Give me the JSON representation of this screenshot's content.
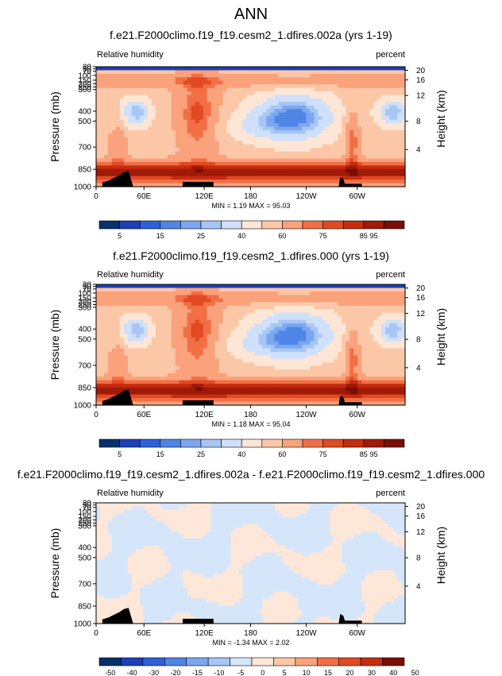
{
  "figure": {
    "title": "ANN"
  },
  "palette": {
    "abs": [
      "#08306b",
      "#1e3fb8",
      "#2f60d8",
      "#4f86e6",
      "#7aa7ef",
      "#a7c6f5",
      "#cfe0fa",
      "#fde6d6",
      "#fcc7a6",
      "#f9a27c",
      "#f26e45",
      "#e14a23",
      "#c52c10",
      "#a01a08",
      "#7a0e04"
    ],
    "diff": [
      "#08306b",
      "#1e3fb8",
      "#2f60d8",
      "#4f86e6",
      "#7aa7ef",
      "#a7c6f5",
      "#d6e6fa",
      "#fde7d8",
      "#fcc7a6",
      "#f9a27c",
      "#f26e45",
      "#e14a23",
      "#c52c10",
      "#7a0e04"
    ],
    "topography": "#000000"
  },
  "chart_data": [
    {
      "type": "heatmap",
      "title": "f.e21.F2000climo.f19_f19.cesm2_1.dfires.002a (yrs 1-19)",
      "variable": "Relative humidity",
      "units": "percent",
      "ylabel": "Pressure (mb)",
      "ylabel_right": "Height (km)",
      "xticks": [
        "0",
        "60E",
        "120E",
        "180",
        "120W",
        "60W"
      ],
      "yticks": [
        "30",
        "50",
        "70",
        "100",
        "150",
        "200",
        "250",
        "300",
        "400",
        "500",
        "700",
        "850",
        "1000"
      ],
      "yticks_right": [
        "20",
        "16",
        "12",
        "8",
        "4"
      ],
      "stats": "MIN =   1.19  MAX =  95.03",
      "colorbar_levels": [
        "5",
        "15",
        "25",
        "40",
        "60",
        "75",
        "85",
        "95"
      ],
      "palette": "abs",
      "field": "abs"
    },
    {
      "type": "heatmap",
      "title": "f.e21.F2000climo.f19_f19.cesm2_1.dfires.000 (yrs 1-19)",
      "variable": "Relative humidity",
      "units": "percent",
      "ylabel": "Pressure (mb)",
      "ylabel_right": "Height (km)",
      "xticks": [
        "0",
        "60E",
        "120E",
        "180",
        "120W",
        "60W"
      ],
      "yticks": [
        "30",
        "50",
        "70",
        "100",
        "150",
        "200",
        "250",
        "300",
        "400",
        "500",
        "700",
        "850",
        "1000"
      ],
      "yticks_right": [
        "20",
        "16",
        "12",
        "8",
        "4"
      ],
      "stats": "MIN =   1.18  MAX =  95.04",
      "colorbar_levels": [
        "5",
        "15",
        "25",
        "40",
        "60",
        "75",
        "85",
        "95"
      ],
      "palette": "abs",
      "field": "abs"
    },
    {
      "type": "heatmap",
      "title": "f.e21.F2000climo.f19_f19.cesm2_1.dfires.002a - f.e21.F2000climo.f19_f19.cesm2_1.dfires.000",
      "variable": "Relative humidity",
      "units": "percent",
      "ylabel": "Pressure (mb)",
      "ylabel_right": "Height (km)",
      "xticks": [
        "0",
        "60E",
        "120E",
        "180",
        "120W",
        "60W"
      ],
      "yticks": [
        "30",
        "50",
        "70",
        "100",
        "150",
        "200",
        "250",
        "300",
        "400",
        "500",
        "700",
        "850",
        "1000"
      ],
      "yticks_right": [
        "20",
        "16",
        "12",
        "8",
        "4"
      ],
      "stats": "MIN =  -1.34  MAX =   2.02",
      "colorbar_levels": [
        "-50",
        "-40",
        "-30",
        "-20",
        "-15",
        "-10",
        "-5",
        "0",
        "5",
        "10",
        "15",
        "20",
        "30",
        "40",
        "50"
      ],
      "palette": "diff",
      "field": "diff"
    }
  ]
}
